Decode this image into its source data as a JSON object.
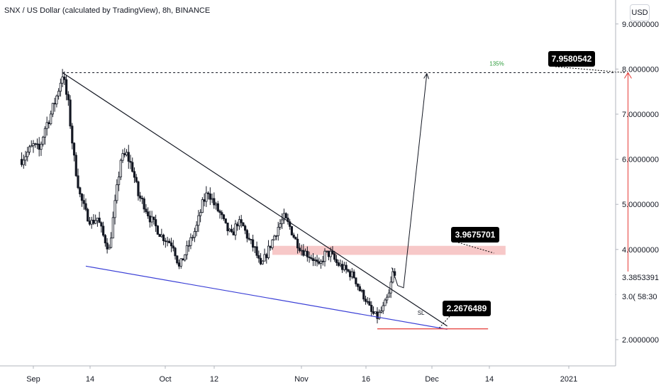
{
  "header": {
    "title": "SNX / US Dollar (calculated by TradingView), 8h, BINANCE",
    "currency_button": "USD"
  },
  "chart_data": {
    "type": "candlestick",
    "symbol": "SNX / US Dollar",
    "timeframe": "8h",
    "exchange": "BINANCE",
    "x_ticks": [
      "Sep",
      "14",
      "Oct",
      "12",
      "Nov",
      "16",
      "Dec",
      "14",
      "2021"
    ],
    "y_ticks": [
      "2.0000000",
      "3.0000000",
      "4.0000000",
      "5.0000000",
      "6.0000000",
      "7.0000000",
      "8.0000000",
      "9.0000000"
    ],
    "ylim": [
      1.3,
      9.4
    ],
    "price_path": [
      [
        -2,
        6.0
      ],
      [
        0,
        6.3
      ],
      [
        1,
        6.2
      ],
      [
        2,
        6.7
      ],
      [
        3,
        7.0
      ],
      [
        4,
        7.4
      ],
      [
        5,
        7.9
      ],
      [
        6,
        7.2
      ],
      [
        7,
        6.0
      ],
      [
        8,
        5.2
      ],
      [
        9,
        4.8
      ],
      [
        10,
        4.6
      ],
      [
        11,
        4.7
      ],
      [
        12,
        4.3
      ],
      [
        13,
        4.0
      ],
      [
        14,
        5.0
      ],
      [
        15,
        6.0
      ],
      [
        16,
        6.1
      ],
      [
        17,
        5.8
      ],
      [
        18,
        5.2
      ],
      [
        19,
        5.0
      ],
      [
        20,
        4.7
      ],
      [
        21,
        4.5
      ],
      [
        22,
        4.3
      ],
      [
        23,
        4.2
      ],
      [
        24,
        4.1
      ],
      [
        25,
        3.6
      ],
      [
        26,
        3.9
      ],
      [
        27,
        4.2
      ],
      [
        28,
        4.5
      ],
      [
        29,
        5.0
      ],
      [
        30,
        5.3
      ],
      [
        31,
        5.0
      ],
      [
        32,
        4.8
      ],
      [
        33,
        4.5
      ],
      [
        34,
        4.3
      ],
      [
        35,
        4.6
      ],
      [
        36,
        4.5
      ],
      [
        37,
        4.2
      ],
      [
        38,
        4.0
      ],
      [
        39,
        3.6
      ],
      [
        40,
        3.9
      ],
      [
        41,
        4.2
      ],
      [
        42,
        4.5
      ],
      [
        43,
        4.7
      ],
      [
        44,
        4.5
      ],
      [
        45,
        4.2
      ],
      [
        46,
        4.0
      ],
      [
        47,
        3.9
      ],
      [
        48,
        3.8
      ],
      [
        49,
        3.6
      ],
      [
        50,
        3.9
      ],
      [
        51,
        3.9
      ],
      [
        52,
        3.7
      ],
      [
        53,
        3.6
      ],
      [
        54,
        3.5
      ],
      [
        55,
        3.4
      ],
      [
        56,
        3.1
      ],
      [
        57,
        2.9
      ],
      [
        58,
        2.6
      ],
      [
        59,
        2.5
      ],
      [
        60,
        2.7
      ],
      [
        61,
        3.0
      ],
      [
        61.7,
        3.5
      ],
      [
        62.3,
        3.3
      ]
    ],
    "resistance_line": {
      "from": [
        5,
        7.92
      ],
      "to": [
        71,
        2.3
      ]
    },
    "support_line": {
      "from": [
        9,
        3.63
      ],
      "to": [
        71,
        2.23
      ]
    },
    "top_level_line": {
      "from": [
        5,
        7.92
      ],
      "to": [
        100,
        7.92
      ]
    },
    "zone": {
      "x_from": 41,
      "x_to": 81,
      "y_from": 3.88,
      "y_to": 4.08
    },
    "projection_path": [
      [
        61.5,
        3.6
      ],
      [
        62.5,
        3.2
      ],
      [
        63.5,
        3.15
      ],
      [
        67.5,
        7.9
      ]
    ],
    "target_label": {
      "text": "7.9580542",
      "price": 7.958
    },
    "zone_label": {
      "text": "3.9675701",
      "price": 3.97
    },
    "stop_label": {
      "text": "2.2676489",
      "price": 2.27
    },
    "percent_annotation": "135%",
    "stop_annotation": "SL",
    "sl_line": {
      "from": [
        59,
        2.24
      ],
      "to": [
        78,
        2.24
      ]
    },
    "target_arrow": {
      "x": 102,
      "from": 3.4,
      "to": 7.92
    },
    "axis_markers": [
      {
        "price": 3.3853391,
        "text": "3.3853391"
      },
      {
        "price": 2.96,
        "text": "3.0( 58:30"
      }
    ],
    "grid": false,
    "colors": {
      "candles": "#131722",
      "resistance": "#131722",
      "support": "#3a3fd6",
      "sl_line": "#e53935",
      "target_arrow": "#e53935",
      "zone": "#f7c8c8",
      "percent_text": "#2e9c3c",
      "label_bg": "#000000",
      "label_text": "#ffffff"
    }
  }
}
